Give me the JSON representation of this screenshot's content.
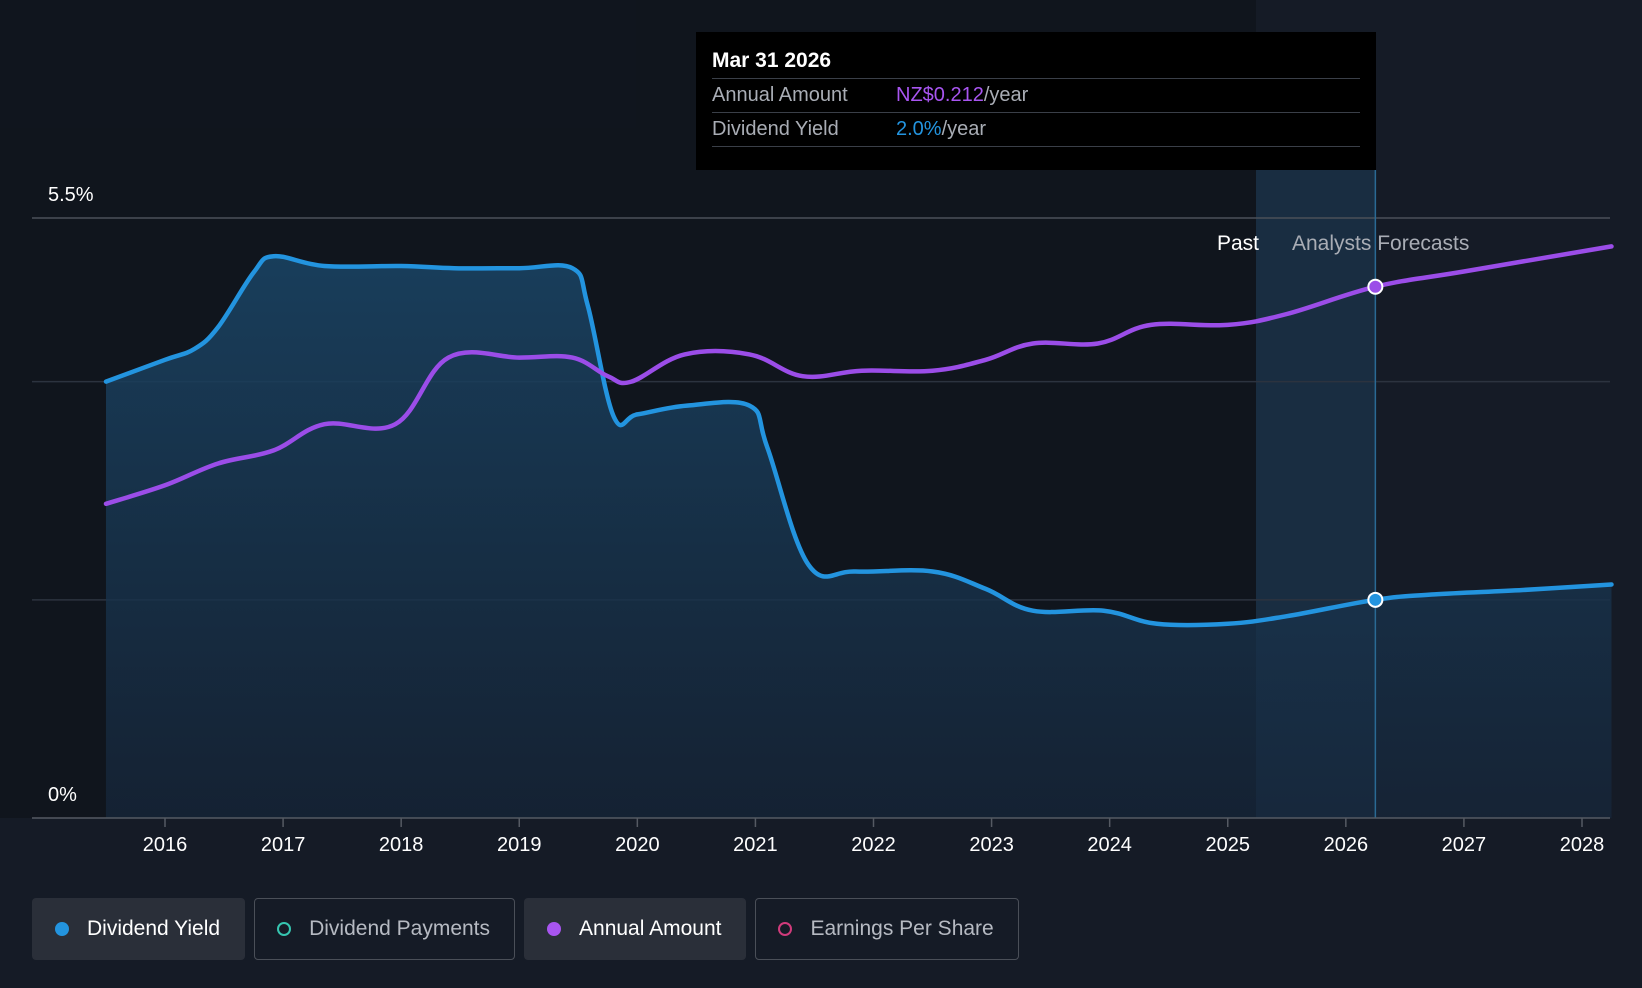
{
  "tooltip": {
    "date": "Mar 31 2026",
    "rows": [
      {
        "label": "Annual Amount",
        "value": "NZ$0.212",
        "unit": "/year"
      },
      {
        "label": "Dividend Yield",
        "value": "2.0%",
        "unit": "/year"
      }
    ]
  },
  "legend": [
    {
      "label": "Dividend Yield",
      "active": true
    },
    {
      "label": "Dividend Payments",
      "active": false
    },
    {
      "label": "Annual Amount",
      "active": true
    },
    {
      "label": "Earnings Per Share",
      "active": false
    }
  ],
  "colors": {
    "dividend_yield": "#2394df",
    "dividend_payments": "#36c5b0",
    "annual_amount": "#9b4de8",
    "earnings_per_share": "#d03b7b",
    "background": "#151b26"
  },
  "chart_data": {
    "type": "line",
    "y_tick_labels": [
      "5.5%",
      "0%"
    ],
    "ylim": [
      0,
      5.5
    ],
    "xlim": [
      2015.42,
      2028.25
    ],
    "x_tick_labels": [
      "2016",
      "2017",
      "2018",
      "2019",
      "2020",
      "2021",
      "2022",
      "2023",
      "2024",
      "2025",
      "2026",
      "2027",
      "2028"
    ],
    "region_labels": {
      "past": "Past",
      "forecast": "Analysts Forecasts"
    },
    "forecast_start": 2025.25,
    "highlight_x": 2026.25,
    "gridlines": true,
    "series": [
      {
        "name": "Dividend Yield",
        "area": true,
        "points": [
          [
            2015.5,
            4.0
          ],
          [
            2016.0,
            4.2
          ],
          [
            2016.25,
            4.3
          ],
          [
            2016.45,
            4.5
          ],
          [
            2016.75,
            5.0
          ],
          [
            2016.92,
            5.15
          ],
          [
            2017.35,
            5.06
          ],
          [
            2018.0,
            5.06
          ],
          [
            2018.45,
            5.04
          ],
          [
            2019.0,
            5.04
          ],
          [
            2019.45,
            5.04
          ],
          [
            2019.58,
            4.7
          ],
          [
            2019.8,
            3.68
          ],
          [
            2020.0,
            3.7
          ],
          [
            2020.42,
            3.78
          ],
          [
            2020.95,
            3.78
          ],
          [
            2021.1,
            3.4
          ],
          [
            2021.45,
            2.32
          ],
          [
            2021.85,
            2.26
          ],
          [
            2022.5,
            2.26
          ],
          [
            2022.95,
            2.1
          ],
          [
            2023.35,
            1.9
          ],
          [
            2023.95,
            1.9
          ],
          [
            2024.4,
            1.78
          ],
          [
            2025.0,
            1.78
          ],
          [
            2025.5,
            1.85
          ],
          [
            2026.25,
            2.0
          ],
          [
            2026.75,
            2.05
          ],
          [
            2027.5,
            2.09
          ],
          [
            2028.25,
            2.14
          ]
        ]
      },
      {
        "name": "Annual Amount",
        "area": false,
        "points": [
          [
            2015.5,
            2.88
          ],
          [
            2016.0,
            3.05
          ],
          [
            2016.45,
            3.25
          ],
          [
            2016.92,
            3.37
          ],
          [
            2017.35,
            3.61
          ],
          [
            2017.95,
            3.61
          ],
          [
            2018.4,
            4.22
          ],
          [
            2019.0,
            4.22
          ],
          [
            2019.45,
            4.22
          ],
          [
            2019.75,
            4.05
          ],
          [
            2019.95,
            4.0
          ],
          [
            2020.4,
            4.25
          ],
          [
            2020.95,
            4.25
          ],
          [
            2021.4,
            4.05
          ],
          [
            2021.9,
            4.1
          ],
          [
            2022.5,
            4.1
          ],
          [
            2022.95,
            4.2
          ],
          [
            2023.35,
            4.35
          ],
          [
            2023.9,
            4.35
          ],
          [
            2024.35,
            4.52
          ],
          [
            2025.0,
            4.52
          ],
          [
            2025.5,
            4.62
          ],
          [
            2026.25,
            4.87
          ],
          [
            2027.0,
            5.01
          ],
          [
            2028.25,
            5.24
          ]
        ]
      }
    ]
  }
}
